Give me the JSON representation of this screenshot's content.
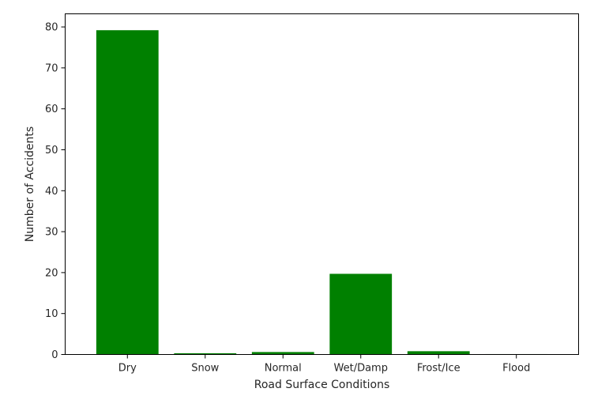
{
  "chart_data": {
    "type": "bar",
    "categories": [
      "Dry",
      "Snow",
      "Normal",
      "Wet/Damp",
      "Frost/Ice",
      "Flood"
    ],
    "values": [
      79.2,
      0.3,
      0.6,
      19.7,
      0.8,
      0.1
    ],
    "xlabel": "Road Surface Conditions",
    "ylabel": "Number of Accidents",
    "ylim": [
      0,
      83.2
    ],
    "yticks": [
      0,
      10,
      20,
      30,
      40,
      50,
      60,
      70,
      80
    ],
    "bar_color": "#008000",
    "grid": false
  }
}
